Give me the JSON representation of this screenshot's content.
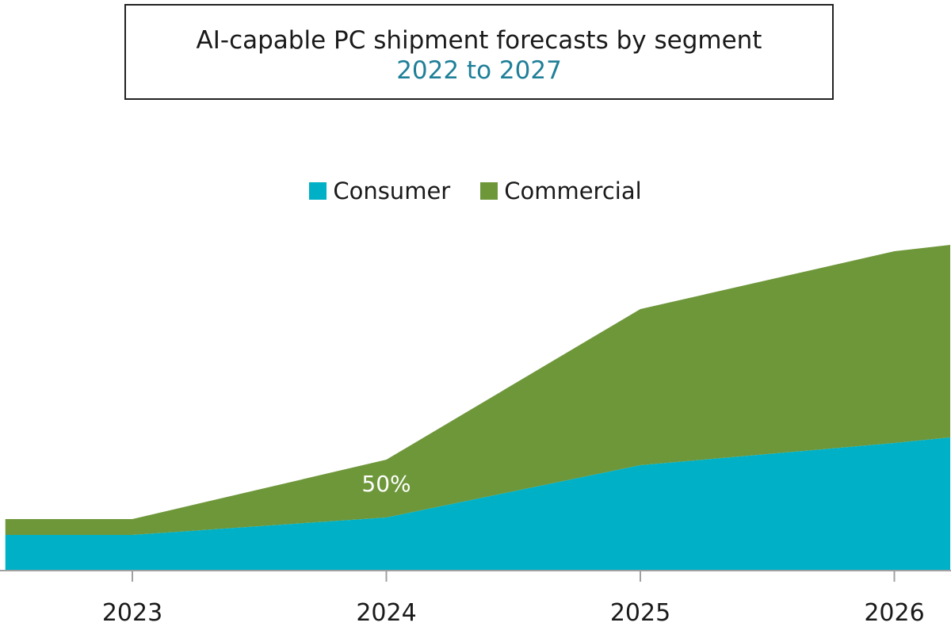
{
  "chart_data": {
    "type": "area",
    "stacked": true,
    "title": "AI-capable PC shipment forecasts by segment",
    "subtitle": "2022 to 2027",
    "x": [
      2022.5,
      2023,
      2024,
      2025,
      2026,
      2026.22
    ],
    "tick_labels": [
      "2023",
      "2024",
      "2025",
      "2026"
    ],
    "ylim": [
      0,
      42
    ],
    "series": [
      {
        "name": "Consumer",
        "color": "#00b0c6",
        "values": [
          4.5,
          4.5,
          6.7,
          13.3,
          16.1,
          16.8
        ]
      },
      {
        "name": "Commercial",
        "color": "#6e973a",
        "values": [
          2.0,
          2.0,
          7.3,
          19.7,
          24.2,
          24.3
        ]
      }
    ],
    "annotations": [
      {
        "text": "50%",
        "x": 2024,
        "y": 10.0
      }
    ],
    "legend_position": "top-center",
    "grid": false
  }
}
